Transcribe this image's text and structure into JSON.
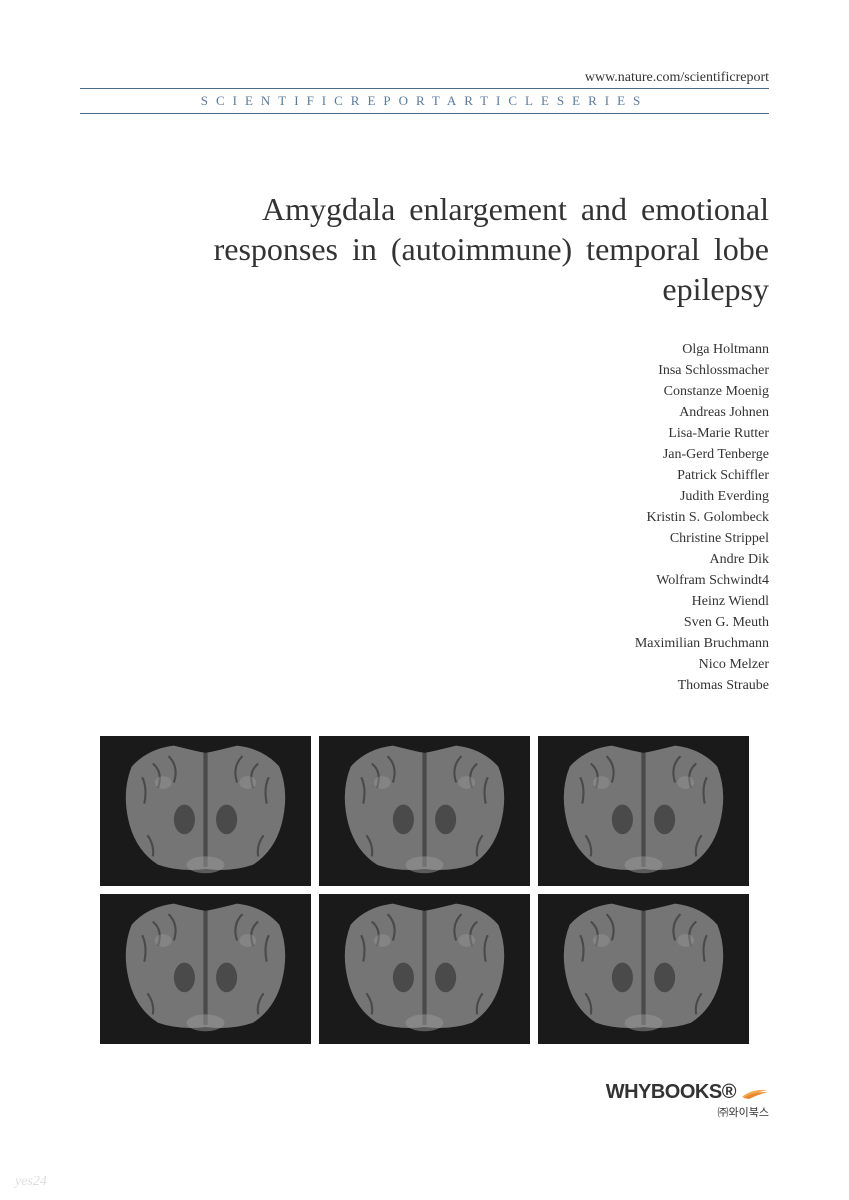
{
  "header": {
    "url": "www.nature.com/scientificreport",
    "series_label": "SCIENTIFICREPORTARTICLESERIES"
  },
  "title": "Amygdala enlargement and emotional responses in (autoimmune) temporal lobe epilepsy",
  "authors": [
    "Olga Holtmann",
    "Insa Schlossmacher",
    "Constanze Moenig",
    "Andreas Johnen",
    "Lisa-Marie Rutter",
    "Jan-Gerd Tenberge",
    "Patrick Schiffler",
    "Judith Everding",
    "Kristin S. Golombeck",
    "Christine Strippel",
    "Andre Dik",
    "Wolfram Schwindt4",
    "Heinz Wiendl",
    "Sven G. Meuth",
    "Maximilian Bruchmann",
    "Nico Melzer",
    "Thomas Straube"
  ],
  "image_grid": {
    "rows": 2,
    "cols": 3,
    "background": "#1a1a1a",
    "brain_fill": "#757575",
    "brain_dark": "#4a4a4a",
    "brain_light": "#9a9a9a"
  },
  "publisher": {
    "name": "WHYBOOKS",
    "registered": "®",
    "subtitle": "㈜와이북스",
    "swoosh_color1": "#f4a850",
    "swoosh_color2": "#e88830"
  },
  "watermark": "yes24",
  "colors": {
    "divider": "#4a6a8a",
    "series_text": "#5a7a9a",
    "body_text": "#333333"
  }
}
